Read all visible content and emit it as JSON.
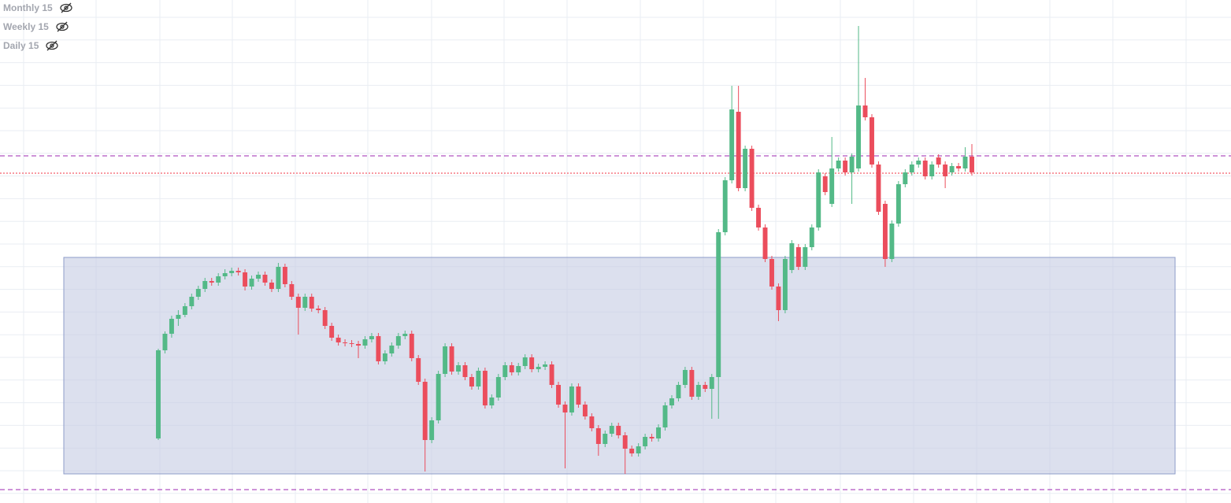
{
  "chart_data": {
    "type": "candlestick",
    "legend": [
      "Monthly 15",
      "Weekly 15",
      "Daily 15"
    ],
    "ylim": [
      0,
      639
    ],
    "up_color": "#53b987",
    "down_color": "#eb4d5c",
    "levels": [
      {
        "value": 441,
        "color": "#9c27b0",
        "style": "dashed"
      },
      {
        "value": 419,
        "color": "#f23645",
        "style": "dotted"
      },
      {
        "value": 17,
        "color": "#9c27b0",
        "style": "dashed"
      }
    ],
    "zone": {
      "low": 37,
      "high": 312,
      "color": "#c5cbe3"
    },
    "candles": [
      [
        82,
        196,
        80,
        194
      ],
      [
        194,
        218,
        190,
        215
      ],
      [
        215,
        238,
        210,
        234
      ],
      [
        234,
        245,
        225,
        239
      ],
      [
        239,
        254,
        236,
        250
      ],
      [
        250,
        266,
        246,
        262
      ],
      [
        262,
        276,
        258,
        272
      ],
      [
        272,
        286,
        268,
        282
      ],
      [
        282,
        286,
        276,
        280
      ],
      [
        280,
        292,
        276,
        288
      ],
      [
        288,
        297,
        284,
        292
      ],
      [
        292,
        299,
        288,
        295
      ],
      [
        295,
        299,
        289,
        293
      ],
      [
        293,
        297,
        270,
        275
      ],
      [
        275,
        289,
        271,
        285
      ],
      [
        285,
        294,
        281,
        290
      ],
      [
        290,
        294,
        276,
        280
      ],
      [
        280,
        284,
        268,
        272
      ],
      [
        272,
        305,
        268,
        300
      ],
      [
        300,
        304,
        274,
        278
      ],
      [
        278,
        282,
        258,
        262
      ],
      [
        262,
        266,
        214,
        248
      ],
      [
        248,
        266,
        244,
        262
      ],
      [
        262,
        266,
        243,
        247
      ],
      [
        247,
        251,
        241,
        245
      ],
      [
        245,
        249,
        221,
        225
      ],
      [
        225,
        229,
        206,
        210
      ],
      [
        210,
        214,
        200,
        204
      ],
      [
        204,
        208,
        199,
        203
      ],
      [
        203,
        207,
        198,
        202
      ],
      [
        202,
        206,
        184,
        200
      ],
      [
        200,
        212,
        196,
        208
      ],
      [
        208,
        216,
        204,
        212
      ],
      [
        212,
        216,
        176,
        180
      ],
      [
        180,
        194,
        176,
        190
      ],
      [
        190,
        204,
        186,
        200
      ],
      [
        200,
        216,
        196,
        212
      ],
      [
        212,
        219,
        208,
        215
      ],
      [
        215,
        219,
        180,
        184
      ],
      [
        184,
        188,
        150,
        154
      ],
      [
        154,
        158,
        40,
        80
      ],
      [
        80,
        109,
        76,
        105
      ],
      [
        105,
        168,
        101,
        164
      ],
      [
        164,
        203,
        160,
        199
      ],
      [
        199,
        203,
        163,
        167
      ],
      [
        167,
        179,
        163,
        175
      ],
      [
        175,
        179,
        156,
        160
      ],
      [
        160,
        164,
        144,
        148
      ],
      [
        148,
        172,
        144,
        168
      ],
      [
        168,
        172,
        120,
        124
      ],
      [
        124,
        138,
        120,
        134
      ],
      [
        134,
        164,
        130,
        160
      ],
      [
        160,
        179,
        156,
        175
      ],
      [
        175,
        179,
        162,
        166
      ],
      [
        166,
        178,
        162,
        174
      ],
      [
        174,
        189,
        170,
        185
      ],
      [
        185,
        189,
        166,
        170
      ],
      [
        170,
        177,
        166,
        173
      ],
      [
        173,
        180,
        169,
        176
      ],
      [
        176,
        180,
        146,
        150
      ],
      [
        150,
        154,
        121,
        125
      ],
      [
        125,
        129,
        44,
        115
      ],
      [
        115,
        152,
        111,
        148
      ],
      [
        148,
        152,
        121,
        125
      ],
      [
        125,
        129,
        106,
        110
      ],
      [
        110,
        114,
        91,
        95
      ],
      [
        95,
        99,
        60,
        75
      ],
      [
        75,
        92,
        71,
        88
      ],
      [
        88,
        102,
        84,
        98
      ],
      [
        98,
        102,
        82,
        86
      ],
      [
        86,
        90,
        37,
        69
      ],
      [
        69,
        73,
        59,
        63
      ],
      [
        63,
        76,
        59,
        72
      ],
      [
        72,
        88,
        68,
        84
      ],
      [
        84,
        88,
        78,
        82
      ],
      [
        82,
        100,
        78,
        96
      ],
      [
        96,
        128,
        92,
        124
      ],
      [
        124,
        137,
        120,
        133
      ],
      [
        133,
        154,
        129,
        150
      ],
      [
        150,
        173,
        146,
        169
      ],
      [
        169,
        173,
        131,
        135
      ],
      [
        135,
        154,
        131,
        150
      ],
      [
        150,
        154,
        141,
        145
      ],
      [
        145,
        164,
        107,
        160
      ],
      [
        160,
        348,
        107,
        344
      ],
      [
        344,
        414,
        340,
        410
      ],
      [
        410,
        530,
        406,
        500
      ],
      [
        497,
        530,
        396,
        400
      ],
      [
        400,
        454,
        396,
        450
      ],
      [
        450,
        454,
        371,
        375
      ],
      [
        375,
        379,
        346,
        350
      ],
      [
        350,
        354,
        306,
        310
      ],
      [
        310,
        314,
        271,
        275
      ],
      [
        275,
        279,
        231,
        245
      ],
      [
        245,
        314,
        241,
        310
      ],
      [
        296,
        334,
        292,
        330
      ],
      [
        325,
        329,
        296,
        300
      ],
      [
        300,
        329,
        296,
        325
      ],
      [
        325,
        354,
        321,
        350
      ],
      [
        350,
        424,
        346,
        420
      ],
      [
        415,
        419,
        391,
        395
      ],
      [
        380,
        465,
        376,
        425
      ],
      [
        425,
        439,
        421,
        435
      ],
      [
        435,
        439,
        416,
        420
      ],
      [
        420,
        444,
        380,
        440
      ],
      [
        425,
        606,
        421,
        505
      ],
      [
        505,
        540,
        486,
        490
      ],
      [
        490,
        494,
        426,
        430
      ],
      [
        430,
        434,
        366,
        370
      ],
      [
        380,
        384,
        300,
        310
      ],
      [
        310,
        359,
        306,
        355
      ],
      [
        355,
        409,
        351,
        405
      ],
      [
        405,
        424,
        401,
        420
      ],
      [
        420,
        434,
        416,
        430
      ],
      [
        430,
        439,
        426,
        435
      ],
      [
        435,
        439,
        411,
        415
      ],
      [
        415,
        434,
        411,
        430
      ],
      [
        439,
        443,
        426,
        430
      ],
      [
        430,
        434,
        400,
        415
      ],
      [
        420,
        432,
        416,
        428
      ],
      [
        428,
        432,
        421,
        425
      ],
      [
        425,
        452,
        421,
        440
      ],
      [
        440,
        456,
        416,
        420
      ]
    ]
  }
}
